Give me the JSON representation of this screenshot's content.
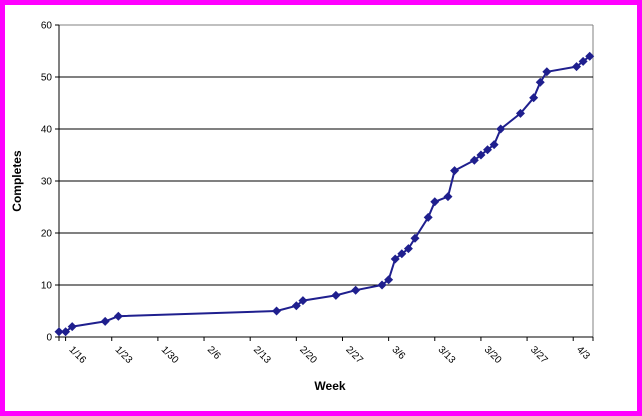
{
  "frame": {
    "border_color": "#ff00ff",
    "background_color": "#ffffff"
  },
  "chart_data": {
    "type": "line",
    "title": "",
    "xlabel": "Week",
    "ylabel": "Completes",
    "legend": "none",
    "grid": true,
    "series_color": "#1f1f8e",
    "marker": "diamond",
    "marker_size": 4.5,
    "line_width": 2,
    "gridline_color": "#000000",
    "plot_border_color": "#808080",
    "axis_color": "#000000",
    "tick_text_color": "#000000",
    "ylim": [
      0,
      60
    ],
    "y_ticks": [
      0,
      10,
      20,
      30,
      40,
      50,
      60
    ],
    "x_axis_days": [
      0,
      81
    ],
    "x_tick_rotation_deg": 45,
    "x_ticks": [
      {
        "day": 1,
        "label": "1/16"
      },
      {
        "day": 8,
        "label": "1/23"
      },
      {
        "day": 15,
        "label": "1/30"
      },
      {
        "day": 22,
        "label": "2/6"
      },
      {
        "day": 29,
        "label": "2/13"
      },
      {
        "day": 36,
        "label": "2/20"
      },
      {
        "day": 43,
        "label": "2/27"
      },
      {
        "day": 50,
        "label": "3/6"
      },
      {
        "day": 57,
        "label": "3/13"
      },
      {
        "day": 64,
        "label": "3/20"
      },
      {
        "day": 71,
        "label": "3/27"
      },
      {
        "day": 78,
        "label": "4/3"
      }
    ],
    "points": [
      {
        "date": "1/15",
        "day": 0,
        "value": 1
      },
      {
        "date": "1/16",
        "day": 1,
        "value": 1
      },
      {
        "date": "1/17",
        "day": 2,
        "value": 2
      },
      {
        "date": "1/22",
        "day": 7,
        "value": 3
      },
      {
        "date": "1/24",
        "day": 9,
        "value": 4
      },
      {
        "date": "2/17",
        "day": 33,
        "value": 5
      },
      {
        "date": "2/20",
        "day": 36,
        "value": 6
      },
      {
        "date": "2/21",
        "day": 37,
        "value": 7
      },
      {
        "date": "2/26",
        "day": 42,
        "value": 8
      },
      {
        "date": "3/1",
        "day": 45,
        "value": 9
      },
      {
        "date": "3/5",
        "day": 49,
        "value": 10
      },
      {
        "date": "3/6",
        "day": 50,
        "value": 11
      },
      {
        "date": "3/7",
        "day": 51,
        "value": 15
      },
      {
        "date": "3/8",
        "day": 52,
        "value": 16
      },
      {
        "date": "3/9",
        "day": 53,
        "value": 17
      },
      {
        "date": "3/10",
        "day": 54,
        "value": 19
      },
      {
        "date": "3/12",
        "day": 56,
        "value": 23
      },
      {
        "date": "3/13",
        "day": 57,
        "value": 26
      },
      {
        "date": "3/15",
        "day": 59,
        "value": 27
      },
      {
        "date": "3/16",
        "day": 60,
        "value": 32
      },
      {
        "date": "3/19",
        "day": 63,
        "value": 34
      },
      {
        "date": "3/20",
        "day": 64,
        "value": 35
      },
      {
        "date": "3/21",
        "day": 65,
        "value": 36
      },
      {
        "date": "3/22",
        "day": 66,
        "value": 37
      },
      {
        "date": "3/23",
        "day": 67,
        "value": 40
      },
      {
        "date": "3/26",
        "day": 70,
        "value": 43
      },
      {
        "date": "3/28",
        "day": 72,
        "value": 46
      },
      {
        "date": "3/29",
        "day": 73,
        "value": 49
      },
      {
        "date": "3/30",
        "day": 74,
        "value": 51
      },
      {
        "date": "4/3",
        "day": 78.5,
        "value": 52
      },
      {
        "date": "4/4",
        "day": 79.5,
        "value": 53
      },
      {
        "date": "4/5",
        "day": 80.5,
        "value": 54
      }
    ]
  }
}
